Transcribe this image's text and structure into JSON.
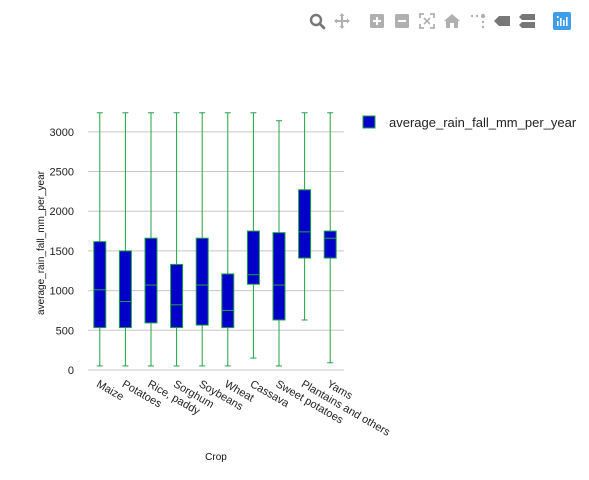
{
  "toolbar": {
    "buttons": [
      {
        "name": "zoom-button",
        "icon": "zoom-icon"
      },
      {
        "name": "pan-button",
        "icon": "pan-icon"
      },
      {
        "name": "zoom-in-button",
        "icon": "zoom-in-icon"
      },
      {
        "name": "zoom-out-button",
        "icon": "zoom-out-icon"
      },
      {
        "name": "autoscale-button",
        "icon": "autoscale-icon"
      },
      {
        "name": "reset-axes-button",
        "icon": "home-icon"
      },
      {
        "name": "spike-lines-button",
        "icon": "spike-lines-icon"
      },
      {
        "name": "hover-closest-button",
        "icon": "hover-closest-icon"
      },
      {
        "name": "hover-compare-button",
        "icon": "hover-compare-icon"
      },
      {
        "name": "plotly-logo-button",
        "icon": "plotly-logo-icon"
      }
    ]
  },
  "colors": {
    "box_fill": "#0000c8",
    "box_line": "#1fa344",
    "grid": "#c8c8c8",
    "toolbar_icon": "#b0b0b0",
    "toolbar_icon_active": "#777777",
    "logo": "#3f9ee9"
  },
  "chart_data": {
    "type": "box",
    "title": "",
    "xlabel": "Crop",
    "ylabel": "average_rain_fall_mm_per_year",
    "ylim": [
      0,
      3300
    ],
    "yticks": [
      0,
      500,
      1000,
      1500,
      2000,
      2500,
      3000
    ],
    "grid": true,
    "legend": {
      "position": "top-right",
      "entries": [
        "average_rain_fall_mm_per_year"
      ]
    },
    "series": [
      {
        "name": "average_rain_fall_mm_per_year",
        "categories": [
          "Maize",
          "Potatoes",
          "Rice, paddy",
          "Sorghum",
          "Soybeans",
          "Wheat",
          "Cassava",
          "Sweet potatoes",
          "Plantains and others",
          "Yams"
        ],
        "boxes": [
          {
            "min": 51,
            "q1": 534,
            "median": 1010,
            "q3": 1617,
            "max": 3240
          },
          {
            "min": 51,
            "q1": 534,
            "median": 862,
            "q3": 1500,
            "max": 3240
          },
          {
            "min": 51,
            "q1": 593,
            "median": 1070,
            "q3": 1660,
            "max": 3240
          },
          {
            "min": 51,
            "q1": 534,
            "median": 821,
            "q3": 1330,
            "max": 3240
          },
          {
            "min": 51,
            "q1": 565,
            "median": 1070,
            "q3": 1660,
            "max": 3240
          },
          {
            "min": 51,
            "q1": 534,
            "median": 750,
            "q3": 1210,
            "max": 3240
          },
          {
            "min": 150,
            "q1": 1080,
            "median": 1200,
            "q3": 1750,
            "max": 3240
          },
          {
            "min": 51,
            "q1": 630,
            "median": 1070,
            "q3": 1730,
            "max": 3140
          },
          {
            "min": 630,
            "q1": 1410,
            "median": 1740,
            "q3": 2270,
            "max": 3240
          },
          {
            "min": 91,
            "q1": 1410,
            "median": 1660,
            "q3": 1750,
            "max": 3240
          }
        ]
      }
    ]
  }
}
